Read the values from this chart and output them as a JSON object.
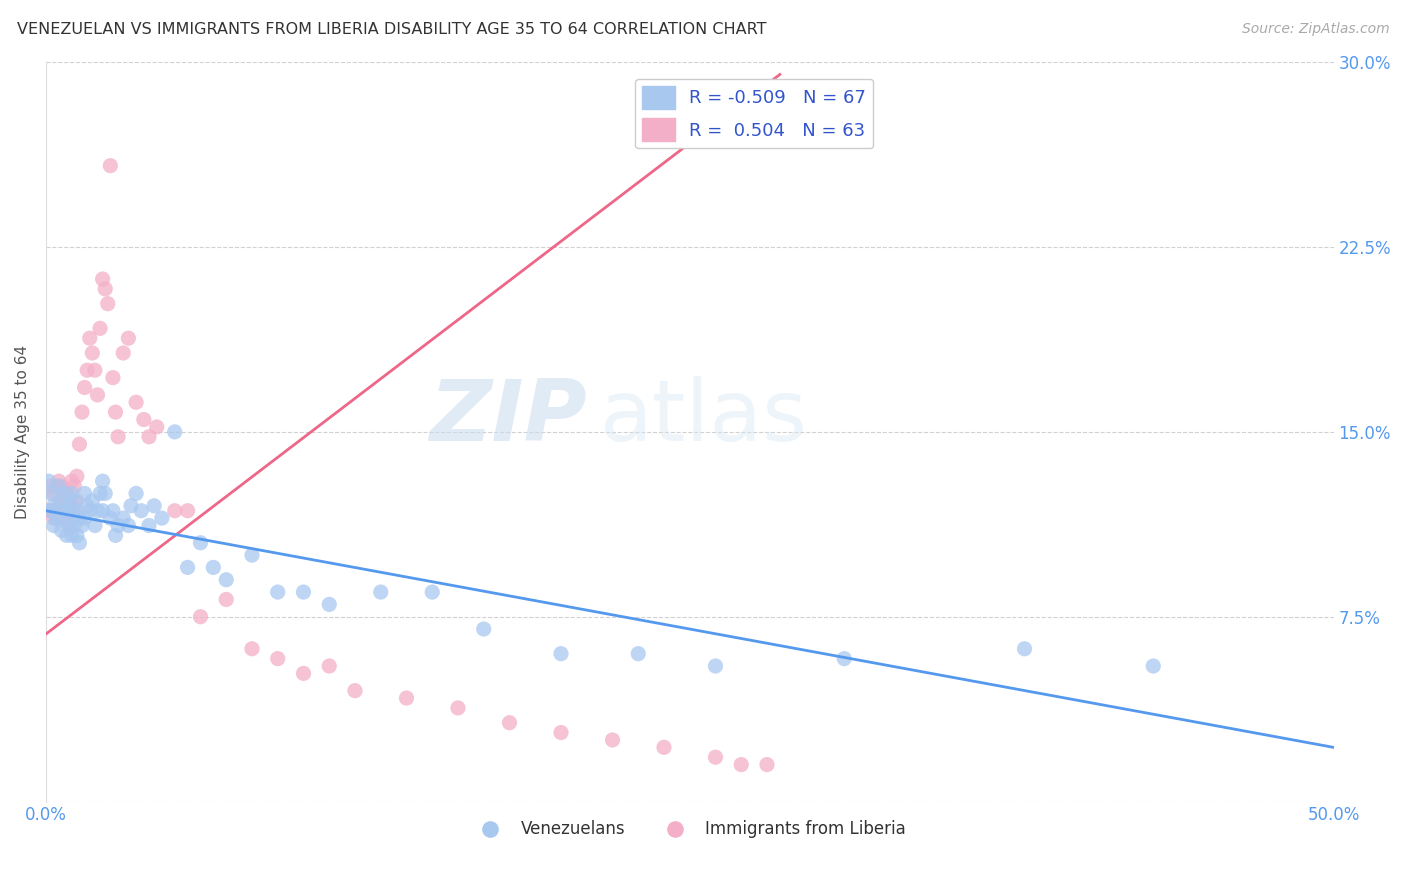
{
  "title": "VENEZUELAN VS IMMIGRANTS FROM LIBERIA DISABILITY AGE 35 TO 64 CORRELATION CHART",
  "source": "Source: ZipAtlas.com",
  "ylabel": "Disability Age 35 to 64",
  "xlim": [
    0.0,
    0.5
  ],
  "ylim": [
    0.0,
    0.3
  ],
  "xtick_positions": [
    0.0,
    0.1,
    0.2,
    0.3,
    0.4,
    0.5
  ],
  "xticklabels": [
    "0.0%",
    "",
    "",
    "",
    "",
    "50.0%"
  ],
  "ytick_positions": [
    0.0,
    0.075,
    0.15,
    0.225,
    0.3
  ],
  "yticklabels": [
    "",
    "7.5%",
    "15.0%",
    "22.5%",
    "30.0%"
  ],
  "legend_r_blue": "-0.509",
  "legend_n_blue": "67",
  "legend_r_pink": "0.504",
  "legend_n_pink": "63",
  "blue_color": "#a8c8f0",
  "pink_color": "#f4afc8",
  "blue_line_color": "#5599ee",
  "pink_line_color": "#ee6688",
  "watermark_zip": "ZIP",
  "watermark_atlas": "atlas",
  "blue_scatter_x": [
    0.001,
    0.002,
    0.002,
    0.003,
    0.003,
    0.004,
    0.005,
    0.005,
    0.006,
    0.006,
    0.007,
    0.007,
    0.008,
    0.008,
    0.009,
    0.009,
    0.01,
    0.01,
    0.01,
    0.011,
    0.011,
    0.012,
    0.012,
    0.013,
    0.013,
    0.014,
    0.015,
    0.015,
    0.016,
    0.017,
    0.018,
    0.019,
    0.02,
    0.021,
    0.022,
    0.022,
    0.023,
    0.025,
    0.026,
    0.027,
    0.028,
    0.03,
    0.032,
    0.033,
    0.035,
    0.037,
    0.04,
    0.042,
    0.045,
    0.05,
    0.055,
    0.06,
    0.065,
    0.07,
    0.08,
    0.09,
    0.1,
    0.11,
    0.13,
    0.15,
    0.17,
    0.2,
    0.23,
    0.26,
    0.31,
    0.38,
    0.43
  ],
  "blue_scatter_y": [
    0.13,
    0.125,
    0.118,
    0.12,
    0.112,
    0.115,
    0.128,
    0.118,
    0.122,
    0.11,
    0.125,
    0.115,
    0.118,
    0.108,
    0.12,
    0.112,
    0.125,
    0.118,
    0.108,
    0.122,
    0.112,
    0.118,
    0.108,
    0.115,
    0.105,
    0.112,
    0.125,
    0.115,
    0.12,
    0.118,
    0.122,
    0.112,
    0.118,
    0.125,
    0.13,
    0.118,
    0.125,
    0.115,
    0.118,
    0.108,
    0.112,
    0.115,
    0.112,
    0.12,
    0.125,
    0.118,
    0.112,
    0.12,
    0.115,
    0.15,
    0.095,
    0.105,
    0.095,
    0.09,
    0.1,
    0.085,
    0.085,
    0.08,
    0.085,
    0.085,
    0.07,
    0.06,
    0.06,
    0.055,
    0.058,
    0.062,
    0.055
  ],
  "pink_scatter_x": [
    0.001,
    0.002,
    0.002,
    0.003,
    0.003,
    0.004,
    0.004,
    0.005,
    0.005,
    0.006,
    0.006,
    0.007,
    0.007,
    0.008,
    0.008,
    0.009,
    0.009,
    0.01,
    0.01,
    0.011,
    0.011,
    0.012,
    0.012,
    0.013,
    0.014,
    0.015,
    0.016,
    0.017,
    0.018,
    0.019,
    0.02,
    0.021,
    0.022,
    0.023,
    0.024,
    0.025,
    0.026,
    0.027,
    0.028,
    0.03,
    0.032,
    0.035,
    0.038,
    0.04,
    0.043,
    0.05,
    0.055,
    0.06,
    0.07,
    0.08,
    0.09,
    0.1,
    0.11,
    0.12,
    0.14,
    0.16,
    0.18,
    0.2,
    0.22,
    0.24,
    0.26,
    0.27,
    0.28
  ],
  "pink_scatter_y": [
    0.118,
    0.128,
    0.118,
    0.125,
    0.115,
    0.128,
    0.118,
    0.13,
    0.12,
    0.128,
    0.118,
    0.122,
    0.115,
    0.125,
    0.115,
    0.122,
    0.112,
    0.13,
    0.12,
    0.128,
    0.118,
    0.132,
    0.122,
    0.145,
    0.158,
    0.168,
    0.175,
    0.188,
    0.182,
    0.175,
    0.165,
    0.192,
    0.212,
    0.208,
    0.202,
    0.258,
    0.172,
    0.158,
    0.148,
    0.182,
    0.188,
    0.162,
    0.155,
    0.148,
    0.152,
    0.118,
    0.118,
    0.075,
    0.082,
    0.062,
    0.058,
    0.052,
    0.055,
    0.045,
    0.042,
    0.038,
    0.032,
    0.028,
    0.025,
    0.022,
    0.018,
    0.015,
    0.015
  ],
  "blue_line_x": [
    0.0,
    0.5
  ],
  "blue_line_y": [
    0.118,
    0.022
  ],
  "pink_line_x": [
    0.0,
    0.285
  ],
  "pink_line_y": [
    0.068,
    0.295
  ]
}
